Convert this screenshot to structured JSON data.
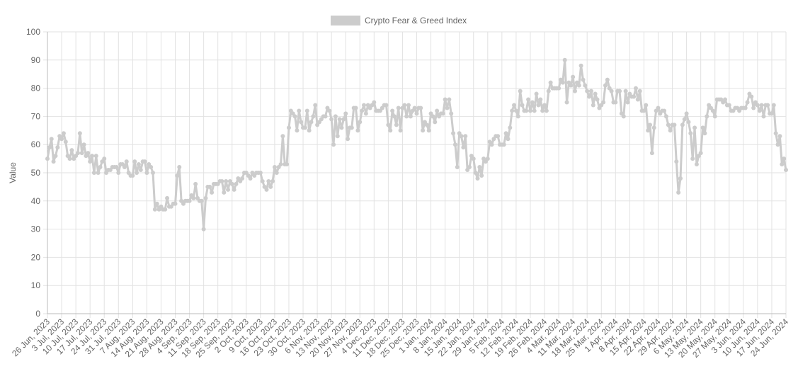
{
  "chart_data": {
    "type": "line",
    "y_label": "Value",
    "legend_position": "top",
    "grid": true,
    "categories": [
      "26 Jun, 2023",
      null,
      null,
      null,
      null,
      null,
      null,
      "3 Jul, 2023",
      null,
      null,
      null,
      null,
      null,
      null,
      "10 Jul, 2023",
      null,
      null,
      null,
      null,
      null,
      null,
      "17 Jul, 2023",
      null,
      null,
      null,
      null,
      null,
      null,
      "24 Jul, 2023",
      null,
      null,
      null,
      null,
      null,
      null,
      "31 Jul, 2023",
      null,
      null,
      null,
      null,
      null,
      null,
      "7 Aug, 2023",
      null,
      null,
      null,
      null,
      null,
      null,
      "14 Aug, 2023",
      null,
      null,
      null,
      null,
      null,
      null,
      "21 Aug, 2023",
      null,
      null,
      null,
      null,
      null,
      null,
      "28 Aug, 2023",
      null,
      null,
      null,
      null,
      null,
      null,
      "4 Sep, 2023",
      null,
      null,
      null,
      null,
      null,
      null,
      "11 Sep, 2023",
      null,
      null,
      null,
      null,
      null,
      null,
      "18 Sep, 2023",
      null,
      null,
      null,
      null,
      null,
      null,
      "25 Sep, 2023",
      null,
      null,
      null,
      null,
      null,
      null,
      "2 Oct, 2023",
      null,
      null,
      null,
      null,
      null,
      null,
      "9 Oct, 2023",
      null,
      null,
      null,
      null,
      null,
      null,
      "16 Oct, 2023",
      null,
      null,
      null,
      null,
      null,
      null,
      "23 Oct, 2023",
      null,
      null,
      null,
      null,
      null,
      null,
      "30 Oct, 2023",
      null,
      null,
      null,
      null,
      null,
      null,
      "6 Nov, 2023",
      null,
      null,
      null,
      null,
      null,
      null,
      "13 Nov, 2023",
      null,
      null,
      null,
      null,
      null,
      null,
      "20 Nov, 2023",
      null,
      null,
      null,
      null,
      null,
      null,
      "27 Nov, 2023",
      null,
      null,
      null,
      null,
      null,
      null,
      "4 Dec, 2023",
      null,
      null,
      null,
      null,
      null,
      null,
      "11 Dec, 2023",
      null,
      null,
      null,
      null,
      null,
      null,
      "18 Dec, 2023",
      null,
      null,
      null,
      null,
      null,
      null,
      "25 Dec, 2023",
      null,
      null,
      null,
      null,
      null,
      null,
      "1 Jan, 2024",
      null,
      null,
      null,
      null,
      null,
      null,
      "8 Jan, 2024",
      null,
      null,
      null,
      null,
      null,
      null,
      "15 Jan, 2024",
      null,
      null,
      null,
      null,
      null,
      null,
      "22 Jan, 2024",
      null,
      null,
      null,
      null,
      null,
      null,
      "29 Jan, 2024",
      null,
      null,
      null,
      null,
      null,
      null,
      "5 Feb, 2024",
      null,
      null,
      null,
      null,
      null,
      null,
      "12 Feb, 2024",
      null,
      null,
      null,
      null,
      null,
      null,
      "19 Feb, 2024",
      null,
      null,
      null,
      null,
      null,
      null,
      "26 Feb, 2024",
      null,
      null,
      null,
      null,
      null,
      null,
      "4 Mar, 2024",
      null,
      null,
      null,
      null,
      null,
      null,
      "11 Mar, 2024",
      null,
      null,
      null,
      null,
      null,
      null,
      "18 Mar, 2024",
      null,
      null,
      null,
      null,
      null,
      null,
      "25 Mar, 2024",
      null,
      null,
      null,
      null,
      null,
      null,
      "1 Apr, 2024",
      null,
      null,
      null,
      null,
      null,
      null,
      "8 Apr, 2024",
      null,
      null,
      null,
      null,
      null,
      null,
      "15 Apr, 2024",
      null,
      null,
      null,
      null,
      null,
      null,
      "22 Apr, 2024",
      null,
      null,
      null,
      null,
      null,
      null,
      "29 Apr, 2024",
      null,
      null,
      null,
      null,
      null,
      null,
      "6 May, 2024",
      null,
      null,
      null,
      null,
      null,
      null,
      "13 May, 2024",
      null,
      null,
      null,
      null,
      null,
      null,
      "20 May, 2024",
      null,
      null,
      null,
      null,
      null,
      null,
      "27 May, 2024",
      null,
      null,
      null,
      null,
      null,
      null,
      "3 Jun, 2024",
      null,
      null,
      null,
      null,
      null,
      null,
      "10 Jun, 2024",
      null,
      null,
      null,
      null,
      null,
      null,
      "17 Jun, 2024",
      null,
      null,
      null,
      null,
      null,
      null,
      "24 Jun, 2024"
    ],
    "series": [
      {
        "name": "Crypto Fear & Greed Index",
        "color": "#cccccc",
        "values": [
          55,
          59,
          62,
          54,
          56,
          59,
          63,
          62,
          64,
          61,
          56,
          55,
          58,
          55,
          56,
          57,
          64,
          57,
          60,
          56,
          57,
          54,
          56,
          50,
          56,
          50,
          52,
          54,
          55,
          50,
          51,
          51,
          52,
          52,
          52,
          50,
          53,
          53,
          52,
          54,
          50,
          49,
          49,
          54,
          50,
          53,
          51,
          54,
          54,
          50,
          53,
          52,
          50,
          37,
          39,
          37,
          38,
          37,
          37,
          41,
          38,
          38,
          39,
          39,
          49,
          52,
          40,
          39,
          40,
          40,
          40,
          42,
          41,
          46,
          41,
          40,
          40,
          30,
          41,
          45,
          45,
          43,
          46,
          46,
          46,
          47,
          47,
          43,
          47,
          44,
          47,
          46,
          44,
          46,
          48,
          47,
          48,
          50,
          50,
          49,
          48,
          50,
          49,
          50,
          50,
          50,
          47,
          45,
          44,
          47,
          45,
          47,
          52,
          50,
          52,
          53,
          63,
          53,
          53,
          66,
          72,
          71,
          70,
          65,
          72,
          68,
          66,
          66,
          72,
          65,
          68,
          70,
          74,
          67,
          68,
          69,
          70,
          70,
          73,
          72,
          69,
          60,
          70,
          63,
          69,
          66,
          69,
          71,
          62,
          66,
          66,
          73,
          73,
          65,
          68,
          72,
          74,
          71,
          74,
          73,
          74,
          75,
          72,
          72,
          72,
          73,
          74,
          74,
          67,
          65,
          72,
          70,
          67,
          73,
          65,
          73,
          74,
          70,
          74,
          70,
          72,
          73,
          71,
          73,
          73,
          65,
          68,
          67,
          65,
          71,
          70,
          68,
          72,
          70,
          71,
          71,
          76,
          73,
          76,
          71,
          64,
          60,
          52,
          64,
          63,
          59,
          63,
          51,
          52,
          56,
          55,
          50,
          48,
          52,
          49,
          55,
          54,
          55,
          61,
          60,
          62,
          63,
          63,
          60,
          60,
          60,
          64,
          62,
          66,
          72,
          74,
          72,
          70,
          79,
          74,
          72,
          72,
          76,
          72,
          75,
          72,
          78,
          74,
          76,
          72,
          74,
          72,
          79,
          82,
          80,
          80,
          80,
          80,
          83,
          82,
          90,
          75,
          82,
          81,
          84,
          79,
          82,
          81,
          88,
          83,
          81,
          79,
          77,
          79,
          74,
          78,
          76,
          73,
          74,
          75,
          81,
          83,
          80,
          79,
          75,
          75,
          79,
          79,
          71,
          70,
          79,
          75,
          78,
          77,
          77,
          80,
          76,
          79,
          72,
          72,
          74,
          65,
          67,
          57,
          66,
          72,
          73,
          71,
          72,
          72,
          70,
          67,
          65,
          67,
          67,
          54,
          43,
          48,
          67,
          69,
          71,
          68,
          64,
          55,
          66,
          53,
          56,
          57,
          66,
          64,
          70,
          74,
          73,
          72,
          70,
          76,
          76,
          76,
          75,
          76,
          74,
          74,
          72,
          72,
          73,
          73,
          72,
          73,
          73,
          73,
          75,
          78,
          77,
          73,
          75,
          74,
          72,
          74,
          70,
          74,
          74,
          71,
          71,
          74,
          64,
          60,
          63,
          53,
          55,
          51
        ]
      }
    ],
    "ylim": [
      0,
      100
    ],
    "yticks": [
      0,
      10,
      20,
      30,
      40,
      50,
      60,
      70,
      80,
      90,
      100
    ]
  }
}
